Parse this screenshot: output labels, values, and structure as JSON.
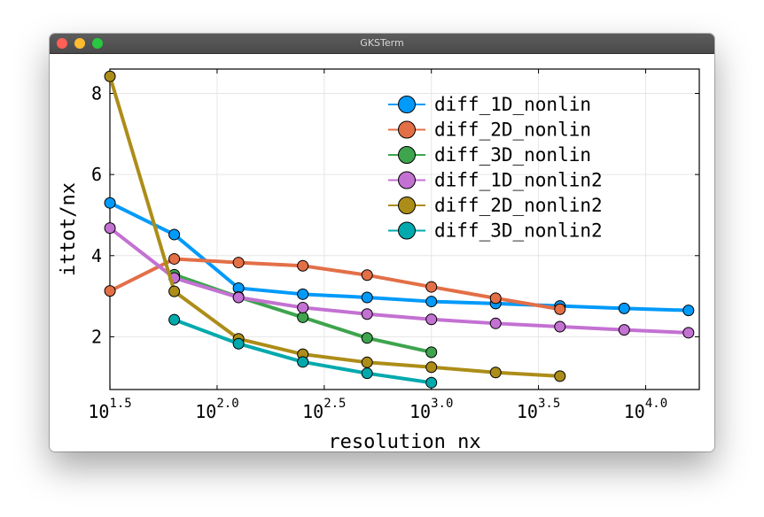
{
  "window": {
    "title": "GKSTerm"
  },
  "chart_data": {
    "type": "line",
    "title": "",
    "xlabel": "resolution nx",
    "ylabel": "ittot/nx",
    "xscale": "log10",
    "xlim": [
      31.6,
      17800
    ],
    "ylim": [
      0.7,
      8.6
    ],
    "xticks": [
      {
        "value": 31.62,
        "base": "10",
        "exp": "1.5"
      },
      {
        "value": 100,
        "base": "10",
        "exp": "2.0"
      },
      {
        "value": 316.2,
        "base": "10",
        "exp": "2.5"
      },
      {
        "value": 1000,
        "base": "10",
        "exp": "3.0"
      },
      {
        "value": 3162,
        "base": "10",
        "exp": "3.5"
      },
      {
        "value": 10000,
        "base": "10",
        "exp": "4.0"
      }
    ],
    "yticks": [
      {
        "value": 2,
        "label": "2"
      },
      {
        "value": 4,
        "label": "4"
      },
      {
        "value": 6,
        "label": "6"
      },
      {
        "value": 8,
        "label": "8"
      }
    ],
    "grid": true,
    "legend_position": "top-right",
    "series": [
      {
        "name": "diff_1D_nonlin",
        "color": "#009AFA",
        "x": [
          31.62,
          63.1,
          125.9,
          251.2,
          501.2,
          1000,
          1995,
          3981,
          7943,
          15849
        ],
        "y": [
          5.3,
          4.52,
          3.2,
          3.05,
          2.97,
          2.87,
          2.82,
          2.76,
          2.7,
          2.65
        ]
      },
      {
        "name": "diff_2D_nonlin",
        "color": "#E36F47",
        "x": [
          31.62,
          63.1,
          125.9,
          251.2,
          501.2,
          1000,
          1995,
          3981
        ],
        "y": [
          3.13,
          3.92,
          3.83,
          3.75,
          3.52,
          3.23,
          2.95,
          2.68
        ]
      },
      {
        "name": "diff_3D_nonlin",
        "color": "#3EA44E",
        "x": [
          63.1,
          125.9,
          251.2,
          501.2,
          1000
        ],
        "y": [
          3.53,
          2.98,
          2.48,
          1.97,
          1.62
        ]
      },
      {
        "name": "diff_1D_nonlin2",
        "color": "#C371D2",
        "x": [
          31.62,
          63.1,
          125.9,
          251.2,
          501.2,
          1000,
          1995,
          3981,
          7943,
          15849
        ],
        "y": [
          4.68,
          3.45,
          2.97,
          2.72,
          2.56,
          2.43,
          2.33,
          2.25,
          2.17,
          2.1
        ]
      },
      {
        "name": "diff_2D_nonlin2",
        "color": "#AC8D18",
        "x": [
          31.62,
          63.1,
          125.9,
          251.2,
          501.2,
          1000,
          1995,
          3981
        ],
        "y": [
          8.42,
          3.12,
          1.95,
          1.57,
          1.37,
          1.25,
          1.12,
          1.03
        ]
      },
      {
        "name": "diff_3D_nonlin2",
        "color": "#00A9AD",
        "x": [
          63.1,
          125.9,
          251.2,
          501.2,
          1000
        ],
        "y": [
          2.42,
          1.83,
          1.38,
          1.1,
          0.87
        ]
      }
    ]
  }
}
